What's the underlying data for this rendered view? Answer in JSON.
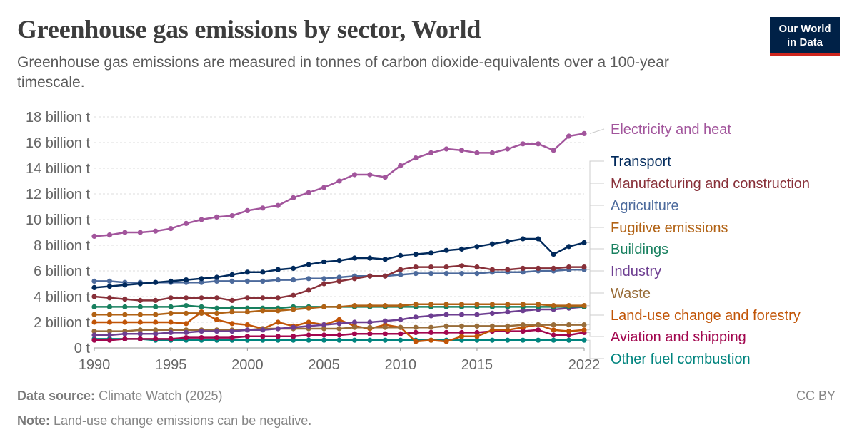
{
  "header": {
    "title": "Greenhouse gas emissions by sector, World",
    "subtitle": "Greenhouse gas emissions are measured in tonnes of carbon dioxide-equivalents over a 100-year timescale."
  },
  "logo": {
    "line1": "Our World",
    "line2": "in Data"
  },
  "footer": {
    "source_label": "Data source:",
    "source_text": "Climate Watch (2025)",
    "note_label": "Note:",
    "note_text": "Land-use change emissions can be negative.",
    "license": "CC BY"
  },
  "chart_data": {
    "type": "line",
    "x_start": 1990,
    "x_end": 2022,
    "xlim": [
      1990,
      2022
    ],
    "ylim": [
      0,
      18
    ],
    "y_ticks": [
      {
        "value": 0,
        "label": "0 t"
      },
      {
        "value": 2,
        "label": "2 billion t"
      },
      {
        "value": 4,
        "label": "4 billion t"
      },
      {
        "value": 6,
        "label": "6 billion t"
      },
      {
        "value": 8,
        "label": "8 billion t"
      },
      {
        "value": 10,
        "label": "10 billion t"
      },
      {
        "value": 12,
        "label": "12 billion t"
      },
      {
        "value": 14,
        "label": "14 billion t"
      },
      {
        "value": 16,
        "label": "16 billion t"
      },
      {
        "value": 18,
        "label": "18 billion t"
      }
    ],
    "x_ticks": [
      1990,
      1995,
      2000,
      2005,
      2010,
      2015,
      2022
    ],
    "grid": "horizontal-dashed",
    "legend": "right",
    "series": [
      {
        "name": "Electricity and heat",
        "color": "#a2559c",
        "values": [
          8.7,
          8.8,
          9.0,
          9.0,
          9.1,
          9.3,
          9.7,
          10.0,
          10.2,
          10.3,
          10.7,
          10.9,
          11.1,
          11.7,
          12.1,
          12.5,
          13.0,
          13.5,
          13.5,
          13.3,
          14.2,
          14.8,
          15.2,
          15.5,
          15.4,
          15.2,
          15.2,
          15.5,
          15.9,
          15.9,
          15.4,
          16.5,
          16.7
        ]
      },
      {
        "name": "Transport",
        "color": "#00295b",
        "values": [
          4.7,
          4.8,
          4.9,
          5.0,
          5.1,
          5.2,
          5.3,
          5.4,
          5.5,
          5.7,
          5.9,
          5.9,
          6.1,
          6.2,
          6.5,
          6.7,
          6.8,
          7.0,
          7.0,
          6.9,
          7.2,
          7.3,
          7.4,
          7.6,
          7.7,
          7.9,
          8.1,
          8.3,
          8.5,
          8.5,
          7.3,
          7.9,
          8.2
        ]
      },
      {
        "name": "Manufacturing and construction",
        "color": "#883039",
        "values": [
          4.0,
          3.9,
          3.8,
          3.7,
          3.7,
          3.9,
          3.9,
          3.9,
          3.9,
          3.7,
          3.9,
          3.9,
          3.9,
          4.1,
          4.5,
          5.0,
          5.2,
          5.4,
          5.6,
          5.6,
          6.1,
          6.3,
          6.3,
          6.3,
          6.4,
          6.3,
          6.1,
          6.1,
          6.2,
          6.2,
          6.2,
          6.3,
          6.3
        ]
      },
      {
        "name": "Agriculture",
        "color": "#4c6a9c",
        "values": [
          5.2,
          5.2,
          5.1,
          5.1,
          5.1,
          5.1,
          5.1,
          5.1,
          5.2,
          5.2,
          5.2,
          5.2,
          5.3,
          5.3,
          5.4,
          5.4,
          5.5,
          5.6,
          5.6,
          5.6,
          5.7,
          5.8,
          5.8,
          5.8,
          5.8,
          5.8,
          5.9,
          5.9,
          5.9,
          6.0,
          6.0,
          6.1,
          6.1
        ]
      },
      {
        "name": "Fugitive emissions",
        "color": "#b16214",
        "values": [
          2.6,
          2.6,
          2.6,
          2.6,
          2.6,
          2.7,
          2.7,
          2.7,
          2.7,
          2.8,
          2.8,
          2.9,
          2.9,
          3.0,
          3.1,
          3.2,
          3.2,
          3.3,
          3.3,
          3.3,
          3.3,
          3.4,
          3.4,
          3.4,
          3.4,
          3.4,
          3.4,
          3.4,
          3.4,
          3.4,
          3.3,
          3.3,
          3.3
        ]
      },
      {
        "name": "Buildings",
        "color": "#18805f",
        "values": [
          3.2,
          3.2,
          3.2,
          3.2,
          3.2,
          3.2,
          3.3,
          3.2,
          3.1,
          3.1,
          3.1,
          3.1,
          3.1,
          3.2,
          3.2,
          3.2,
          3.2,
          3.2,
          3.2,
          3.2,
          3.2,
          3.2,
          3.2,
          3.2,
          3.2,
          3.2,
          3.2,
          3.2,
          3.2,
          3.2,
          3.2,
          3.2,
          3.2
        ]
      },
      {
        "name": "Industry",
        "color": "#6d3e91",
        "values": [
          1.0,
          1.0,
          1.1,
          1.1,
          1.1,
          1.2,
          1.2,
          1.3,
          1.3,
          1.3,
          1.4,
          1.4,
          1.5,
          1.6,
          1.7,
          1.8,
          1.9,
          2.0,
          2.0,
          2.1,
          2.2,
          2.4,
          2.5,
          2.6,
          2.6,
          2.6,
          2.7,
          2.8,
          2.9,
          3.0,
          3.0,
          3.1,
          3.2
        ]
      },
      {
        "name": "Waste",
        "color": "#996d39",
        "values": [
          1.3,
          1.3,
          1.3,
          1.4,
          1.4,
          1.4,
          1.4,
          1.4,
          1.4,
          1.4,
          1.4,
          1.5,
          1.5,
          1.5,
          1.5,
          1.5,
          1.5,
          1.6,
          1.6,
          1.6,
          1.6,
          1.6,
          1.6,
          1.7,
          1.7,
          1.7,
          1.7,
          1.7,
          1.8,
          1.8,
          1.8,
          1.8,
          1.8
        ]
      },
      {
        "name": "Land-use change and forestry",
        "color": "#c15406",
        "values": [
          2.0,
          2.0,
          2.0,
          2.0,
          2.0,
          2.0,
          1.9,
          2.8,
          2.2,
          1.9,
          1.8,
          1.5,
          2.0,
          1.7,
          2.0,
          1.8,
          2.2,
          1.7,
          1.5,
          1.8,
          1.6,
          0.5,
          0.6,
          0.5,
          0.9,
          0.9,
          1.4,
          1.4,
          1.6,
          1.8,
          1.4,
          1.3,
          1.4
        ]
      },
      {
        "name": "Aviation and shipping",
        "color": "#a2064e",
        "values": [
          0.6,
          0.6,
          0.7,
          0.7,
          0.7,
          0.7,
          0.8,
          0.8,
          0.8,
          0.8,
          0.9,
          0.9,
          0.9,
          0.9,
          1.0,
          1.0,
          1.0,
          1.1,
          1.1,
          1.1,
          1.1,
          1.2,
          1.2,
          1.2,
          1.2,
          1.2,
          1.3,
          1.3,
          1.3,
          1.4,
          1.0,
          1.0,
          1.2
        ]
      },
      {
        "name": "Other fuel combustion",
        "color": "#00847e",
        "values": [
          0.7,
          0.7,
          0.7,
          0.7,
          0.6,
          0.6,
          0.6,
          0.6,
          0.6,
          0.6,
          0.6,
          0.6,
          0.6,
          0.6,
          0.6,
          0.6,
          0.6,
          0.6,
          0.6,
          0.6,
          0.6,
          0.6,
          0.6,
          0.6,
          0.6,
          0.6,
          0.6,
          0.6,
          0.6,
          0.6,
          0.6,
          0.6,
          0.6
        ]
      }
    ]
  },
  "colors": {
    "grid": "#dddddd",
    "axis": "#999999",
    "tick_text": "#666666",
    "connector": "#cccccc"
  }
}
